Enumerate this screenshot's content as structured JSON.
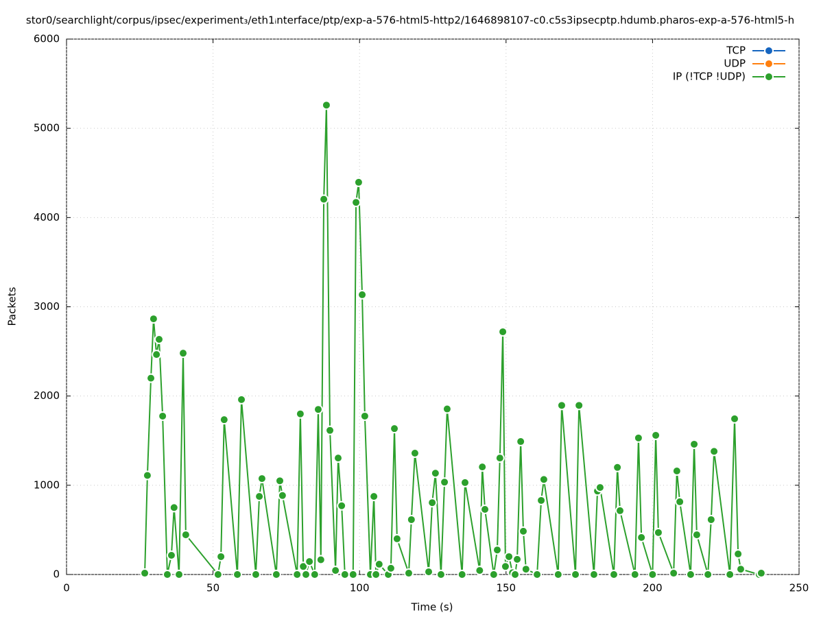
{
  "chart_data": {
    "type": "line",
    "title": "stor0/searchlight/corpus/ipsec/experiment₃/eth1ᵢnterface/ptp/exp-a-576-html5-http2/1646898107-c0.c5s3ipsecptp.hdumb.pharos-exp-a-576-html5-h",
    "x_label": "Time (s)",
    "y_label": "Packets",
    "xlim": [
      0,
      250
    ],
    "ylim": [
      0,
      6000
    ],
    "xticks": [
      0,
      50,
      100,
      150,
      200,
      250
    ],
    "yticks": [
      0,
      1000,
      2000,
      3000,
      4000,
      5000,
      6000
    ],
    "grid": true,
    "legend": "top-right",
    "series": [
      {
        "name": "TCP",
        "color": "#1565c0",
        "x": [],
        "values": []
      },
      {
        "name": "UDP",
        "color": "#ff7f0e",
        "x": [],
        "values": []
      },
      {
        "name": "IP (!TCP  !UDP)",
        "color": "#2ca02c",
        "x": [
          26.7,
          27.6,
          28.8,
          29.7,
          30.7,
          31.6,
          32.8,
          34.4,
          35.8,
          36.7,
          38.4,
          39.8,
          40.7,
          51.7,
          52.7,
          53.8,
          58.3,
          59.7,
          64.6,
          65.8,
          66.7,
          71.6,
          72.8,
          73.7,
          78.7,
          79.8,
          80.8,
          81.7,
          82.9,
          84.7,
          85.9,
          86.8,
          87.8,
          88.7,
          89.9,
          91.8,
          92.7,
          93.9,
          95,
          97.8,
          98.8,
          99.7,
          100.9,
          101.8,
          103.7,
          104.9,
          105.6,
          106.7,
          109.8,
          110.7,
          111.9,
          112.8,
          116.8,
          117.7,
          118.9,
          123.6,
          124.8,
          125.9,
          127.8,
          129,
          129.9,
          135,
          136,
          141,
          141.9,
          142.8,
          145.8,
          147,
          147.9,
          148.9,
          149.8,
          151,
          152.2,
          153.1,
          153.8,
          155,
          155.9,
          156.8,
          160.6,
          162,
          162.9,
          167.8,
          169,
          173.7,
          174.9,
          180,
          181.2,
          182.1,
          186.8,
          188,
          188.9,
          194,
          195.2,
          196.2,
          200,
          201.1,
          202,
          207.2,
          208.3,
          209.3,
          213,
          214.2,
          215.1,
          218.9,
          220,
          221,
          226.4,
          228,
          229.2,
          230.1,
          236.4,
          237.1
        ],
        "values": [
          15,
          1110,
          2200,
          2865,
          2465,
          2635,
          1775,
          0,
          215,
          750,
          0,
          2480,
          445,
          0,
          200,
          1735,
          0,
          1960,
          0,
          875,
          1075,
          0,
          1050,
          885,
          0,
          1800,
          90,
          0,
          145,
          0,
          1850,
          165,
          4205,
          5260,
          1615,
          45,
          1305,
          770,
          0,
          0,
          4170,
          4395,
          3135,
          1775,
          0,
          875,
          0,
          115,
          0,
          70,
          1635,
          400,
          15,
          615,
          1360,
          30,
          805,
          1135,
          0,
          1035,
          1855,
          0,
          1030,
          45,
          1205,
          730,
          0,
          275,
          1305,
          2720,
          90,
          200,
          20,
          0,
          170,
          1490,
          485,
          60,
          0,
          830,
          1065,
          0,
          1895,
          0,
          1895,
          0,
          935,
          975,
          0,
          1200,
          715,
          0,
          1530,
          415,
          0,
          1560,
          470,
          15,
          1160,
          815,
          0,
          1460,
          445,
          0,
          615,
          1380,
          0,
          1745,
          230,
          60,
          0,
          15
        ]
      }
    ]
  }
}
